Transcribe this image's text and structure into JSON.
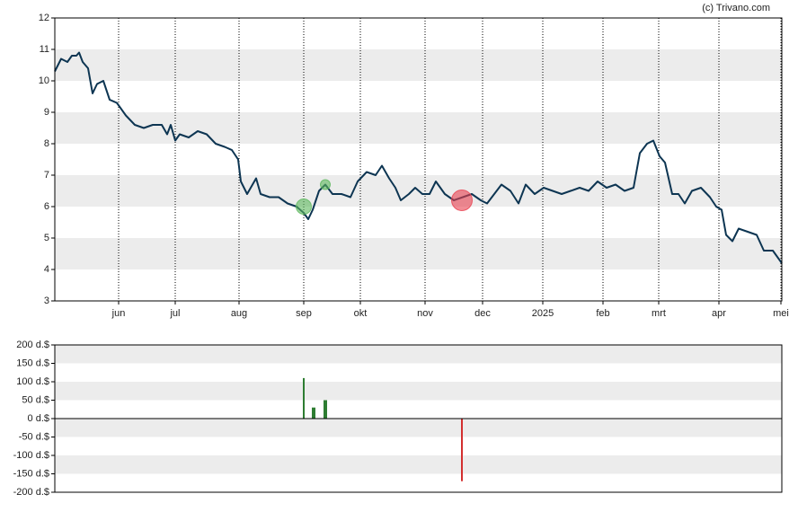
{
  "chart_data": [
    {
      "type": "line",
      "credit": "(c) Trivano.com",
      "xlim": [
        0,
        809
      ],
      "xticks": [
        {
          "value": 71,
          "label": "jun"
        },
        {
          "value": 134,
          "label": "jul"
        },
        {
          "value": 205,
          "label": "aug"
        },
        {
          "value": 277,
          "label": "sep"
        },
        {
          "value": 340,
          "label": "okt"
        },
        {
          "value": 412,
          "label": "nov"
        },
        {
          "value": 476,
          "label": "dec"
        },
        {
          "value": 543,
          "label": "2025"
        },
        {
          "value": 610,
          "label": "feb"
        },
        {
          "value": 672,
          "label": "mrt"
        },
        {
          "value": 739,
          "label": "apr"
        },
        {
          "value": 808,
          "label": "mei"
        }
      ],
      "ylim": [
        3,
        12
      ],
      "yticks": [
        3,
        4,
        5,
        6,
        7,
        8,
        9,
        10,
        11,
        12
      ],
      "grid": "bands",
      "x": [
        0,
        7,
        14,
        19,
        24,
        27,
        31,
        37,
        42,
        47,
        54,
        61,
        69,
        79,
        89,
        99,
        109,
        119,
        125,
        129,
        134,
        139,
        149,
        159,
        169,
        179,
        189,
        197,
        204,
        207,
        214,
        224,
        229,
        239,
        249,
        259,
        269,
        277,
        282,
        287,
        294,
        301,
        309,
        319,
        329,
        337,
        347,
        357,
        364,
        372,
        379,
        385,
        394,
        401,
        409,
        417,
        424,
        434,
        444,
        454,
        464,
        474,
        481,
        489,
        497,
        507,
        516,
        524,
        534,
        544,
        554,
        564,
        574,
        584,
        594,
        604,
        614,
        624,
        634,
        644,
        651,
        659,
        666,
        673,
        679,
        687,
        694,
        701,
        709,
        719,
        729,
        736,
        742,
        747,
        754,
        761,
        771,
        781,
        789,
        799,
        809
      ],
      "series": [
        {
          "color": "#0d3552",
          "values": [
            10.3,
            10.7,
            10.6,
            10.8,
            10.8,
            10.9,
            10.6,
            10.4,
            9.6,
            9.9,
            10.0,
            9.4,
            9.3,
            8.9,
            8.6,
            8.5,
            8.6,
            8.6,
            8.3,
            8.6,
            8.1,
            8.3,
            8.2,
            8.4,
            8.3,
            8.0,
            7.9,
            7.8,
            7.5,
            6.8,
            6.4,
            6.9,
            6.4,
            6.3,
            6.3,
            6.1,
            6.0,
            5.8,
            5.6,
            5.9,
            6.5,
            6.7,
            6.4,
            6.4,
            6.3,
            6.8,
            7.1,
            7.0,
            7.3,
            6.9,
            6.6,
            6.2,
            6.4,
            6.6,
            6.4,
            6.4,
            6.8,
            6.4,
            6.2,
            6.3,
            6.4,
            6.2,
            6.1,
            6.4,
            6.7,
            6.5,
            6.1,
            6.7,
            6.4,
            6.6,
            6.5,
            6.4,
            6.5,
            6.6,
            6.5,
            6.8,
            6.6,
            6.7,
            6.5,
            6.6,
            7.7,
            8.0,
            8.1,
            7.6,
            7.4,
            6.4,
            6.4,
            6.1,
            6.5,
            6.6,
            6.3,
            6.0,
            5.9,
            5.1,
            4.9,
            5.3,
            5.2,
            5.1,
            4.6,
            4.6,
            4.2
          ]
        }
      ],
      "markers": {
        "x": [
          277,
          301,
          453
        ],
        "y": [
          6.0,
          6.7,
          6.2
        ],
        "size": [
          110,
          50,
          170
        ],
        "colors": [
          "#5cb85c",
          "#5cb85c",
          "#e8404f"
        ]
      }
    },
    {
      "type": "bar",
      "xlim": [
        0,
        809
      ],
      "ylim": [
        -200,
        200
      ],
      "yticks": [
        {
          "value": -200,
          "label": "-200 d.$"
        },
        {
          "value": -150,
          "label": "-150 d.$"
        },
        {
          "value": -100,
          "label": "-100 d.$"
        },
        {
          "value": -50,
          "label": "-50 d.$"
        },
        {
          "value": 0,
          "label": "0 d.$"
        },
        {
          "value": 50,
          "label": "50 d.$"
        },
        {
          "value": 100,
          "label": "100 d.$"
        },
        {
          "value": 150,
          "label": "150 d.$"
        },
        {
          "value": 200,
          "label": "200 d.$"
        }
      ],
      "grid": "bands",
      "x": [
        277,
        287,
        289,
        300,
        302,
        453
      ],
      "values": [
        110,
        30,
        30,
        50,
        50,
        -170
      ],
      "positive_color": "#2e7d32",
      "negative_color": "#d32f2f"
    }
  ]
}
